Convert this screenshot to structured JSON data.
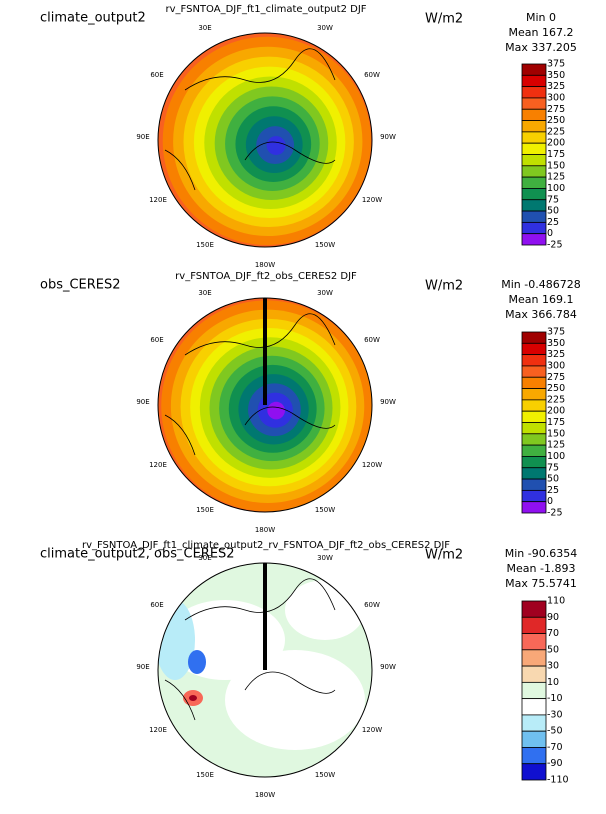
{
  "panels": [
    {
      "left_title": "climate_output2",
      "center_title": "rv_FSNTOA_DJF_ft1_climate_output2  DJF",
      "units": "W/m2",
      "stats": [
        "Min 0",
        "Mean 167.2",
        "Max 337.205"
      ],
      "colorbar": {
        "labels": [
          "375",
          "350",
          "325",
          "300",
          "275",
          "250",
          "225",
          "200",
          "175",
          "150",
          "125",
          "100",
          "75",
          "50",
          "25",
          "0",
          "-25"
        ],
        "colors": [
          "#a00000",
          "#d80000",
          "#f03010",
          "#f86020",
          "#f88000",
          "#f8a800",
          "#f8d000",
          "#f0f000",
          "#c0e000",
          "#80c820",
          "#40b040",
          "#109050",
          "#007870",
          "#2050b0",
          "#3030e0",
          "#9010f0"
        ]
      }
    },
    {
      "left_title": "obs_CERES2",
      "center_title": "rv_FSNTOA_DJF_ft2_obs_CERES2  DJF",
      "units": "W/m2",
      "stats": [
        "Min -0.486728",
        "Mean 169.1",
        "Max 366.784"
      ],
      "colorbar": {
        "labels": [
          "375",
          "350",
          "325",
          "300",
          "275",
          "250",
          "225",
          "200",
          "175",
          "150",
          "125",
          "100",
          "75",
          "50",
          "25",
          "0",
          "-25"
        ],
        "colors": [
          "#a00000",
          "#d80000",
          "#f03010",
          "#f86020",
          "#f88000",
          "#f8a800",
          "#f8d000",
          "#f0f000",
          "#c0e000",
          "#80c820",
          "#40b040",
          "#109050",
          "#007870",
          "#2050b0",
          "#3030e0",
          "#9010f0"
        ]
      }
    },
    {
      "left_title": "climate_output2, obs_CERES2",
      "center_title": "rv_FSNTOA_DJF_ft1_climate_output2_rv_FSNTOA_DJF_ft2_obs_CERES2  DJF",
      "units": "W/m2",
      "stats": [
        "Min -90.6354",
        "Mean -1.893",
        "Max 75.5741"
      ],
      "colorbar": {
        "labels": [
          "110",
          "90",
          "70",
          "50",
          "30",
          "10",
          "-10",
          "-30",
          "-50",
          "-70",
          "-90",
          "-110"
        ],
        "colors": [
          "#a00020",
          "#e02828",
          "#f86858",
          "#f8a878",
          "#f8d8b0",
          "#e0f8e0",
          "#ffffff",
          "#b8ecf8",
          "#70c0f0",
          "#3070f0",
          "#1010d0"
        ]
      }
    }
  ],
  "lon_labels": [
    "30E",
    "30W",
    "60E",
    "60W",
    "90E",
    "90W",
    "120E",
    "120W",
    "150E",
    "150W",
    "180W"
  ]
}
